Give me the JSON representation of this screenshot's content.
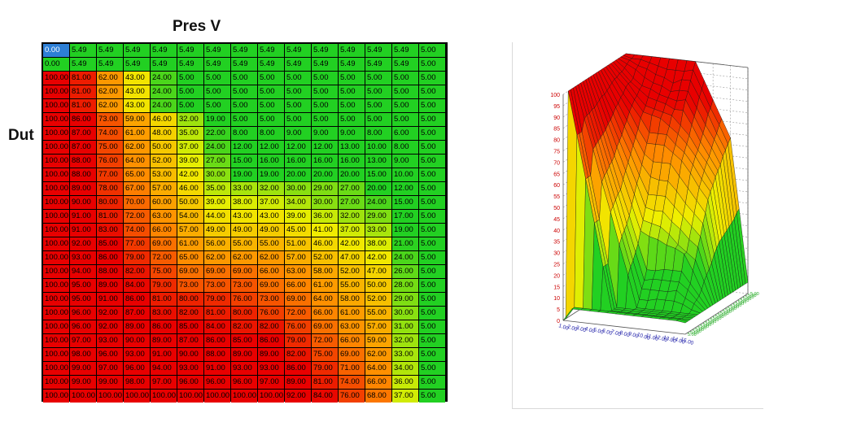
{
  "labels": {
    "x_axis": "Pres V",
    "y_axis": "Dut"
  },
  "colors": {
    "green": "#22d022",
    "yellow": "#f0f000",
    "orange": "#ff8c00",
    "red": "#e80000",
    "selected": "#2d7fd6"
  },
  "table": {
    "rows": [
      [
        "0.00",
        "5.49",
        "5.49",
        "5.49",
        "5.49",
        "5.49",
        "5.49",
        "5.49",
        "5.49",
        "5.49",
        "5.49",
        "5.49",
        "5.49",
        "5.49",
        "5.00"
      ],
      [
        "0.00",
        "5.49",
        "5.49",
        "5.49",
        "5.49",
        "5.49",
        "5.49",
        "5.49",
        "5.49",
        "5.49",
        "5.49",
        "5.49",
        "5.49",
        "5.49",
        "5.00"
      ],
      [
        "100.00",
        "81.00",
        "62.00",
        "43.00",
        "24.00",
        "5.00",
        "5.00",
        "5.00",
        "5.00",
        "5.00",
        "5.00",
        "5.00",
        "5.00",
        "5.00",
        "5.00"
      ],
      [
        "100.00",
        "81.00",
        "62.00",
        "43.00",
        "24.00",
        "5.00",
        "5.00",
        "5.00",
        "5.00",
        "5.00",
        "5.00",
        "5.00",
        "5.00",
        "5.00",
        "5.00"
      ],
      [
        "100.00",
        "81.00",
        "62.00",
        "43.00",
        "24.00",
        "5.00",
        "5.00",
        "5.00",
        "5.00",
        "5.00",
        "5.00",
        "5.00",
        "5.00",
        "5.00",
        "5.00"
      ],
      [
        "100.00",
        "86.00",
        "73.00",
        "59.00",
        "46.00",
        "32.00",
        "19.00",
        "5.00",
        "5.00",
        "5.00",
        "5.00",
        "5.00",
        "5.00",
        "5.00",
        "5.00"
      ],
      [
        "100.00",
        "87.00",
        "74.00",
        "61.00",
        "48.00",
        "35.00",
        "22.00",
        "8.00",
        "8.00",
        "9.00",
        "9.00",
        "9.00",
        "8.00",
        "6.00",
        "5.00"
      ],
      [
        "100.00",
        "87.00",
        "75.00",
        "62.00",
        "50.00",
        "37.00",
        "24.00",
        "12.00",
        "12.00",
        "12.00",
        "12.00",
        "13.00",
        "10.00",
        "8.00",
        "5.00"
      ],
      [
        "100.00",
        "88.00",
        "76.00",
        "64.00",
        "52.00",
        "39.00",
        "27.00",
        "15.00",
        "16.00",
        "16.00",
        "16.00",
        "16.00",
        "13.00",
        "9.00",
        "5.00"
      ],
      [
        "100.00",
        "88.00",
        "77.00",
        "65.00",
        "53.00",
        "42.00",
        "30.00",
        "19.00",
        "19.00",
        "20.00",
        "20.00",
        "20.00",
        "15.00",
        "10.00",
        "5.00"
      ],
      [
        "100.00",
        "89.00",
        "78.00",
        "67.00",
        "57.00",
        "46.00",
        "35.00",
        "33.00",
        "32.00",
        "30.00",
        "29.00",
        "27.00",
        "20.00",
        "12.00",
        "5.00"
      ],
      [
        "100.00",
        "90.00",
        "80.00",
        "70.00",
        "60.00",
        "50.00",
        "39.00",
        "38.00",
        "37.00",
        "34.00",
        "30.00",
        "27.00",
        "24.00",
        "15.00",
        "5.00"
      ],
      [
        "100.00",
        "91.00",
        "81.00",
        "72.00",
        "63.00",
        "54.00",
        "44.00",
        "43.00",
        "43.00",
        "39.00",
        "36.00",
        "32.00",
        "29.00",
        "17.00",
        "5.00"
      ],
      [
        "100.00",
        "91.00",
        "83.00",
        "74.00",
        "66.00",
        "57.00",
        "49.00",
        "49.00",
        "49.00",
        "45.00",
        "41.00",
        "37.00",
        "33.00",
        "19.00",
        "5.00"
      ],
      [
        "100.00",
        "92.00",
        "85.00",
        "77.00",
        "69.00",
        "61.00",
        "56.00",
        "55.00",
        "55.00",
        "51.00",
        "46.00",
        "42.00",
        "38.00",
        "21.00",
        "5.00"
      ],
      [
        "100.00",
        "93.00",
        "86.00",
        "79.00",
        "72.00",
        "65.00",
        "62.00",
        "62.00",
        "62.00",
        "57.00",
        "52.00",
        "47.00",
        "42.00",
        "24.00",
        "5.00"
      ],
      [
        "100.00",
        "94.00",
        "88.00",
        "82.00",
        "75.00",
        "69.00",
        "69.00",
        "69.00",
        "66.00",
        "63.00",
        "58.00",
        "52.00",
        "47.00",
        "26.00",
        "5.00"
      ],
      [
        "100.00",
        "95.00",
        "89.00",
        "84.00",
        "79.00",
        "73.00",
        "73.00",
        "73.00",
        "69.00",
        "66.00",
        "61.00",
        "55.00",
        "50.00",
        "28.00",
        "5.00"
      ],
      [
        "100.00",
        "95.00",
        "91.00",
        "86.00",
        "81.00",
        "80.00",
        "79.00",
        "76.00",
        "73.00",
        "69.00",
        "64.00",
        "58.00",
        "52.00",
        "29.00",
        "5.00"
      ],
      [
        "100.00",
        "96.00",
        "92.00",
        "87.00",
        "83.00",
        "82.00",
        "81.00",
        "80.00",
        "76.00",
        "72.00",
        "66.00",
        "61.00",
        "55.00",
        "30.00",
        "5.00"
      ],
      [
        "100.00",
        "96.00",
        "92.00",
        "89.00",
        "86.00",
        "85.00",
        "84.00",
        "82.00",
        "82.00",
        "76.00",
        "69.00",
        "63.00",
        "57.00",
        "31.00",
        "5.00"
      ],
      [
        "100.00",
        "97.00",
        "93.00",
        "90.00",
        "89.00",
        "87.00",
        "86.00",
        "85.00",
        "86.00",
        "79.00",
        "72.00",
        "66.00",
        "59.00",
        "32.00",
        "5.00"
      ],
      [
        "100.00",
        "98.00",
        "96.00",
        "93.00",
        "91.00",
        "90.00",
        "88.00",
        "89.00",
        "89.00",
        "82.00",
        "75.00",
        "69.00",
        "62.00",
        "33.00",
        "5.00"
      ],
      [
        "100.00",
        "99.00",
        "97.00",
        "96.00",
        "94.00",
        "93.00",
        "91.00",
        "93.00",
        "93.00",
        "86.00",
        "79.00",
        "71.00",
        "64.00",
        "34.00",
        "5.00"
      ],
      [
        "100.00",
        "99.00",
        "99.00",
        "98.00",
        "97.00",
        "96.00",
        "96.00",
        "96.00",
        "97.00",
        "89.00",
        "81.00",
        "74.00",
        "66.00",
        "36.00",
        "5.00"
      ],
      [
        "100.00",
        "100.00",
        "100.00",
        "100.00",
        "100.00",
        "100.00",
        "100.00",
        "100.00",
        "100.00",
        "92.00",
        "84.00",
        "76.00",
        "68.00",
        "37.00",
        "5.00"
      ]
    ]
  },
  "chart": {
    "z_ticks": [
      "100",
      "95",
      "90",
      "85",
      "80",
      "75",
      "70",
      "65",
      "60",
      "55",
      "50",
      "45",
      "40",
      "35",
      "30",
      "25",
      "20",
      "15",
      "10",
      "5",
      "0"
    ],
    "x_ticks": [
      "1.00",
      "2.00",
      "3.00",
      "4.00",
      "5.00",
      "6.00",
      "7.00",
      "8.00",
      "9.00",
      "10.00",
      "11.00",
      "12.00",
      "13.00",
      "14.00",
      "15.00"
    ]
  }
}
